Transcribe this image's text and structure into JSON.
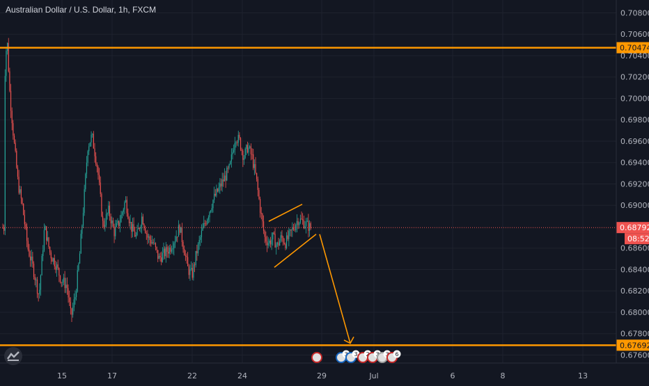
{
  "chart_data": {
    "type": "candlestick",
    "title": "Australian Dollar / U.S. Dollar, 1h, FXCM",
    "ylim": [
      0.67525,
      0.7092
    ],
    "y_ticks": [
      "0.70800",
      "0.70600",
      "0.70400",
      "0.70200",
      "0.70000",
      "0.69800",
      "0.69600",
      "0.69400",
      "0.69200",
      "0.69000",
      "0.68600",
      "0.68400",
      "0.68200",
      "0.68000",
      "0.67800",
      "0.67600"
    ],
    "x_ticks": [
      "15",
      "17",
      "22",
      "24",
      "29",
      "Jul",
      "6",
      "8",
      "13"
    ],
    "levels": [
      {
        "value": 0.70474,
        "label": "0.70474",
        "color": "#ff9800"
      },
      {
        "value": 0.67692,
        "label": "0.67692",
        "color": "#ff9800"
      }
    ],
    "last_price": {
      "value": 0.68792,
      "label": "0.68792",
      "countdown": "08:52",
      "color": "#ef5350"
    },
    "colors": {
      "up": "#26a69a",
      "down": "#ef5350",
      "drawing": "#ff9800",
      "background": "#131722",
      "grid": "#1e222d"
    },
    "event_badges": [
      "3",
      "3",
      "2",
      "3",
      "3",
      "6"
    ],
    "grid": true
  }
}
